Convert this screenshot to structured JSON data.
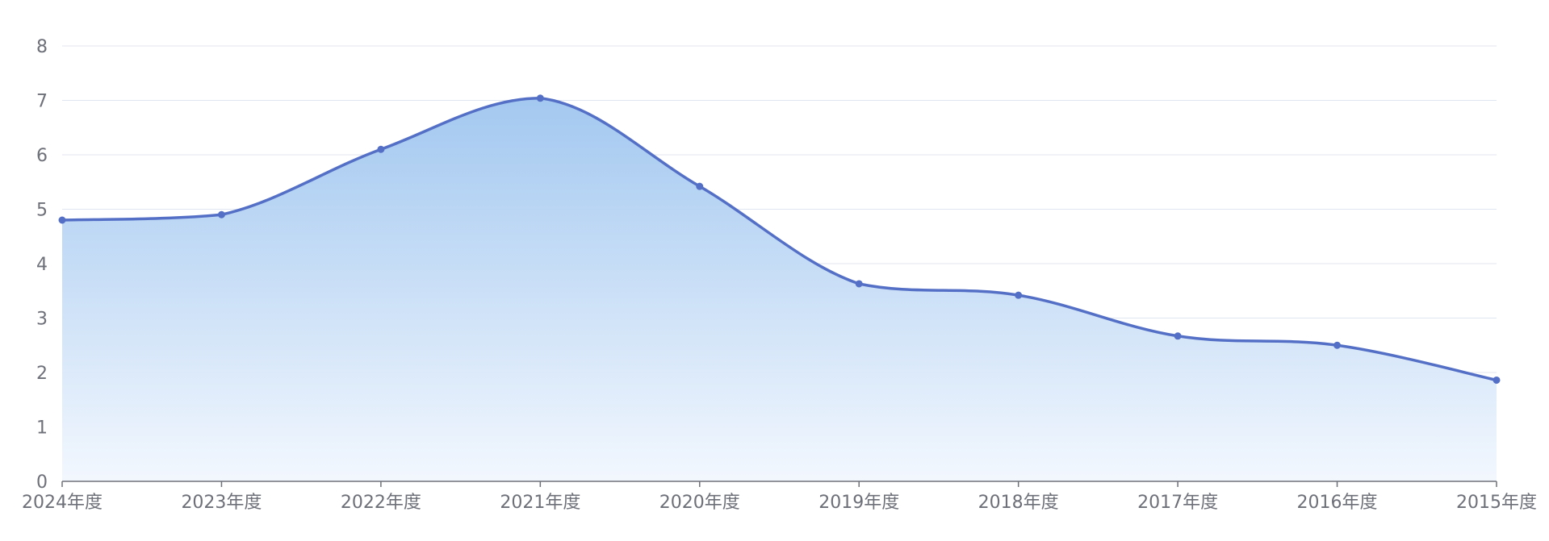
{
  "chart_data": {
    "type": "area",
    "title": "",
    "xlabel": "",
    "ylabel": "",
    "categories": [
      "2024年度",
      "2023年度",
      "2022年度",
      "2021年度",
      "2020年度",
      "2019年度",
      "2018年度",
      "2017年度",
      "2016年度",
      "2015年度"
    ],
    "series": [
      {
        "values": [
          4.8,
          4.9,
          6.1,
          7.04,
          5.42,
          3.63,
          3.42,
          2.67,
          2.5,
          1.86
        ]
      }
    ],
    "ylim": [
      0,
      8
    ],
    "yticks": [
      "0",
      "1",
      "2",
      "3",
      "4",
      "5",
      "6",
      "7",
      "8"
    ],
    "grid": true,
    "legend": "none",
    "colors": {
      "line": "#5470c6",
      "area_top": "#9ec5ef",
      "area_bottom": "#f2f7fe",
      "grid": "#e0e6f1",
      "axis_text": "#6e7079"
    }
  }
}
